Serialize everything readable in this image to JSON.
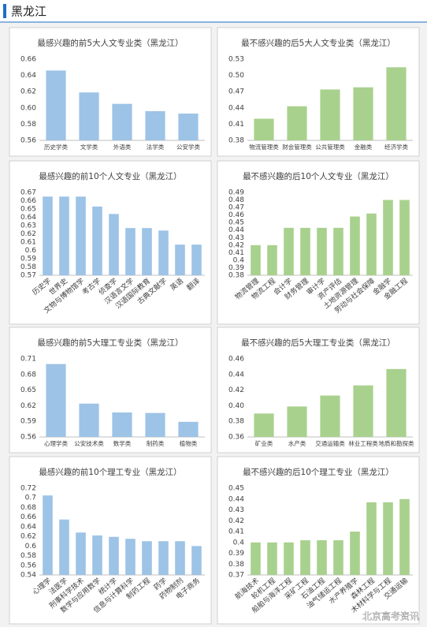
{
  "header": {
    "title": "黑龙江"
  },
  "watermark": "北京高考资讯",
  "chart_data": [
    {
      "type": "bar",
      "title": "最感兴趣的前5大人文专业类（黑龙江）",
      "color": "#9dc3e6",
      "grid": false,
      "categories": [
        "历史学类",
        "文学类",
        "外语类",
        "法学类",
        "公安学类"
      ],
      "values": [
        0.646,
        0.619,
        0.605,
        0.596,
        0.593
      ],
      "ylim": [
        0.56,
        0.66
      ],
      "yticks": [
        0.56,
        0.58,
        {
          "value": 0.6,
          "label": "0.60"
        },
        0.62,
        0.64,
        0.66
      ]
    },
    {
      "type": "bar",
      "title": "最不感兴趣的后5大人文专业类（黑龙江）",
      "color": "#a9d18e",
      "grid": false,
      "categories": [
        "物流管理类",
        "财会管理类",
        "公共管理类",
        "金融类",
        "经济学类"
      ],
      "values": [
        0.42,
        0.443,
        0.474,
        0.478,
        0.515
      ],
      "ylim": [
        0.38,
        0.53
      ],
      "yticks": [
        0.38,
        0.41,
        0.44,
        0.47,
        {
          "value": 0.5,
          "label": "0.50"
        },
        0.53
      ]
    },
    {
      "type": "bar",
      "title": "最感兴趣的前10个人文专业（黑龙江）",
      "color": "#9dc3e6",
      "grid": false,
      "categories": [
        "历史学",
        "世界史",
        "文物与博物馆学",
        "考古学",
        "侦查学",
        "汉语言文学",
        "汉语国际教育",
        "古典文献学",
        "英语",
        "翻译"
      ],
      "values": [
        0.665,
        0.665,
        0.665,
        0.653,
        0.644,
        0.627,
        0.627,
        0.624,
        0.607,
        0.607
      ],
      "ylim": [
        0.57,
        0.67
      ],
      "yticks": [
        0.57,
        0.58,
        0.59,
        0.6,
        0.61,
        0.62,
        0.63,
        0.64,
        0.65,
        0.66,
        0.67
      ]
    },
    {
      "type": "bar",
      "title": "最不感兴趣的后10个人文专业（黑龙江）",
      "color": "#a9d18e",
      "grid": false,
      "categories": [
        "物流管理",
        "物流工程",
        "会计学",
        "财务管理",
        "审计学",
        "资产评估",
        "土地资源管理",
        "劳动与社会保障",
        "金融学",
        "金融工程"
      ],
      "values": [
        0.42,
        0.42,
        0.443,
        0.443,
        0.443,
        0.443,
        0.458,
        0.462,
        0.48,
        0.48
      ],
      "ylim": [
        0.38,
        0.49
      ],
      "yticks": [
        0.38,
        0.39,
        0.4,
        0.41,
        0.42,
        0.43,
        0.44,
        0.45,
        0.46,
        0.47,
        0.48,
        0.49
      ]
    },
    {
      "type": "bar",
      "title": "最感兴趣的前5大理工专业类（黑龙江）",
      "color": "#9dc3e6",
      "grid": false,
      "categories": [
        "心理学类",
        "公安技术类",
        "数学类",
        "制药类",
        "植物类"
      ],
      "values": [
        0.7,
        0.624,
        0.607,
        0.606,
        0.589
      ],
      "ylim": [
        0.56,
        0.71
      ],
      "yticks": [
        0.56,
        0.59,
        0.62,
        0.65,
        0.68,
        0.71
      ]
    },
    {
      "type": "bar",
      "title": "最不感兴趣的后5大理工专业类（黑龙江）",
      "color": "#a9d18e",
      "grid": false,
      "categories": [
        "矿业类",
        "水产类",
        "交通运输类",
        "林业工程类",
        "地质和勘探类"
      ],
      "values": [
        0.39,
        0.399,
        0.413,
        0.426,
        0.447
      ],
      "ylim": [
        0.36,
        0.46
      ],
      "yticks": [
        0.36,
        0.38,
        {
          "value": 0.4,
          "label": "0.40"
        },
        0.42,
        0.44,
        0.46
      ]
    },
    {
      "type": "bar",
      "title": "最感兴趣的前10个理工专业（黑龙江）",
      "color": "#9dc3e6",
      "grid": false,
      "categories": [
        "心理学",
        "法医学",
        "刑事科学技术",
        "数学与应用数学",
        "统计学",
        "信息与计算科学",
        "制药工程",
        "药学",
        "药物制剂",
        "电子商务"
      ],
      "values": [
        0.705,
        0.655,
        0.628,
        0.622,
        0.619,
        0.615,
        0.61,
        0.61,
        0.61,
        0.6
      ],
      "ylim": [
        0.54,
        0.72
      ],
      "yticks": [
        0.54,
        0.56,
        0.58,
        0.6,
        0.62,
        0.64,
        0.66,
        0.68,
        0.7,
        0.72
      ]
    },
    {
      "type": "bar",
      "title": "最不感兴趣的后10个理工专业（黑龙江）",
      "color": "#a9d18e",
      "grid": false,
      "categories": [
        "航海技术",
        "轮机工程",
        "船舶与海洋工程",
        "采矿工程",
        "石油工程",
        "油气储运工程",
        "水产养殖学",
        "森林工程",
        "木材科学与工程",
        "交通运输"
      ],
      "values": [
        0.4,
        0.4,
        0.4,
        0.402,
        0.402,
        0.402,
        0.41,
        0.437,
        0.437,
        0.44
      ],
      "ylim": [
        0.37,
        0.45
      ],
      "yticks": [
        0.37,
        0.38,
        0.39,
        0.4,
        0.41,
        0.42,
        0.43,
        0.44,
        0.45
      ]
    }
  ]
}
